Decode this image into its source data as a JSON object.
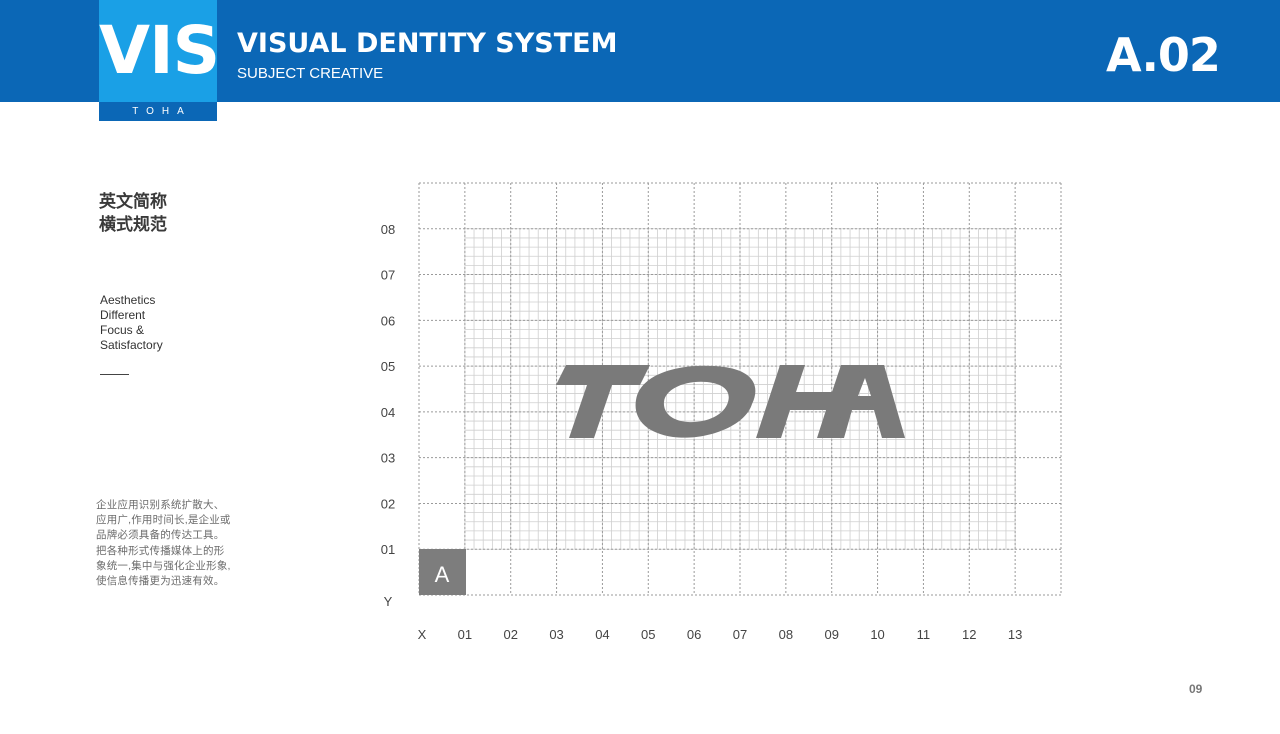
{
  "header": {
    "brand": "VIS",
    "brand_sub": "TOHA",
    "title": "VISUAL DENTITY SYSTEM",
    "subtitle": "SUBJECT CREATIVE",
    "code": "A.02"
  },
  "sidebar": {
    "heading_line1": "英文简称",
    "heading_line2": "横式规范",
    "tagline": [
      "Aesthetics",
      "Different",
      "Focus &",
      "Satisfactory"
    ],
    "body": "企业应用识别系统扩散大、应用广,作用时间长,是企业或品牌必须具备的传达工具。把各种形式传播媒体上的形象统一,集中与强化企业形象,使信息传播更为迅速有效。"
  },
  "grid": {
    "logo_text": "TOHA",
    "unit_label": "A",
    "y_axis_label": "Y",
    "x_axis_label": "X",
    "y_labels": [
      "08",
      "07",
      "06",
      "05",
      "04",
      "03",
      "02",
      "01"
    ],
    "x_labels": [
      "01",
      "02",
      "03",
      "04",
      "05",
      "06",
      "07",
      "08",
      "09",
      "10",
      "11",
      "12",
      "13"
    ]
  },
  "footer": {
    "page_number": "09"
  },
  "colors": {
    "primary": "#0b67b6",
    "accent": "#1aa0e6",
    "logo": "#7a7a7a"
  }
}
